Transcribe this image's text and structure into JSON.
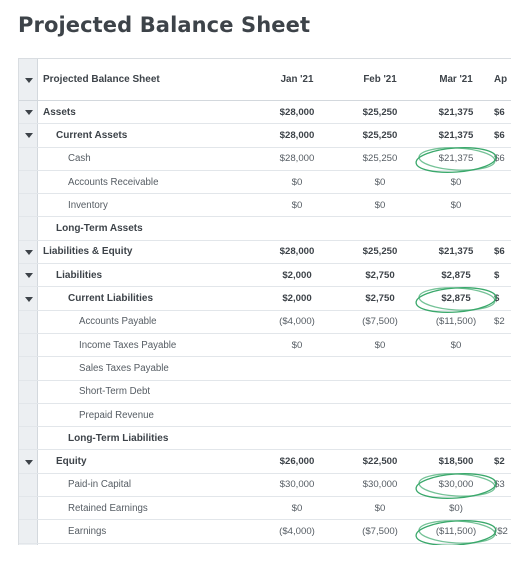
{
  "title": "Projected Balance Sheet",
  "columns": [
    "Jan '21",
    "Feb '21",
    "Mar '21",
    "Ap"
  ],
  "header_label": "Projected Balance Sheet",
  "rows": [
    {
      "label": "Assets",
      "indent": 0,
      "bold": true,
      "caret": true,
      "values": [
        "$28,000",
        "$25,250",
        "$21,375",
        "$6"
      ]
    },
    {
      "label": "Current Assets",
      "indent": 1,
      "bold": true,
      "caret": true,
      "values": [
        "$28,000",
        "$25,250",
        "$21,375",
        "$6"
      ]
    },
    {
      "label": "Cash",
      "indent": 2,
      "bold": false,
      "caret": false,
      "values": [
        "$28,000",
        "$25,250",
        "$21,375",
        "$6"
      ]
    },
    {
      "label": "Accounts Receivable",
      "indent": 2,
      "bold": false,
      "caret": false,
      "values": [
        "$0",
        "$0",
        "$0",
        ""
      ]
    },
    {
      "label": "Inventory",
      "indent": 2,
      "bold": false,
      "caret": false,
      "values": [
        "$0",
        "$0",
        "$0",
        ""
      ]
    },
    {
      "label": "Long-Term Assets",
      "indent": 1,
      "bold": true,
      "caret": false,
      "values": [
        "",
        "",
        "",
        ""
      ]
    },
    {
      "label": "Liabilities & Equity",
      "indent": 0,
      "bold": true,
      "caret": true,
      "values": [
        "$28,000",
        "$25,250",
        "$21,375",
        "$6"
      ]
    },
    {
      "label": "Liabilities",
      "indent": 1,
      "bold": true,
      "caret": true,
      "values": [
        "$2,000",
        "$2,750",
        "$2,875",
        "$"
      ]
    },
    {
      "label": "Current Liabilities",
      "indent": 2,
      "bold": true,
      "caret": true,
      "values": [
        "$2,000",
        "$2,750",
        "$2,875",
        "$"
      ]
    },
    {
      "label": "Accounts Payable",
      "indent": 3,
      "bold": false,
      "caret": false,
      "values": [
        "($4,000)",
        "($7,500)",
        "($11,500)",
        "$2"
      ]
    },
    {
      "label": "Income Taxes Payable",
      "indent": 3,
      "bold": false,
      "caret": false,
      "values": [
        "$0",
        "$0",
        "$0",
        ""
      ]
    },
    {
      "label": "Sales Taxes Payable",
      "indent": 3,
      "bold": false,
      "caret": false,
      "values": [
        "",
        "",
        "",
        ""
      ]
    },
    {
      "label": "Short-Term Debt",
      "indent": 3,
      "bold": false,
      "caret": false,
      "values": [
        "",
        "",
        "",
        ""
      ]
    },
    {
      "label": "Prepaid Revenue",
      "indent": 3,
      "bold": false,
      "caret": false,
      "values": [
        "",
        "",
        "",
        ""
      ]
    },
    {
      "label": "Long-Term Liabilities",
      "indent": 2,
      "bold": true,
      "caret": false,
      "values": [
        "",
        "",
        "",
        ""
      ]
    },
    {
      "label": "Equity",
      "indent": 1,
      "bold": true,
      "caret": true,
      "values": [
        "$26,000",
        "$22,500",
        "$18,500",
        "$2"
      ]
    },
    {
      "label": "Paid-in Capital",
      "indent": 2,
      "bold": false,
      "caret": false,
      "values": [
        "$30,000",
        "$30,000",
        "$30,000",
        "$3"
      ]
    },
    {
      "label": "Retained Earnings",
      "indent": 2,
      "bold": false,
      "caret": false,
      "values": [
        "$0",
        "$0",
        "$0)",
        ""
      ]
    },
    {
      "label": "Earnings",
      "indent": 2,
      "bold": false,
      "caret": false,
      "values": [
        "($4,000)",
        "($7,500)",
        "($11,500)",
        "($2"
      ]
    }
  ],
  "annotation_color": "#3aa86b",
  "circled_cells": [
    {
      "row": 2,
      "col": 2
    },
    {
      "row": 8,
      "col": 2
    },
    {
      "row": 16,
      "col": 2
    },
    {
      "row": 18,
      "col": 2
    }
  ]
}
